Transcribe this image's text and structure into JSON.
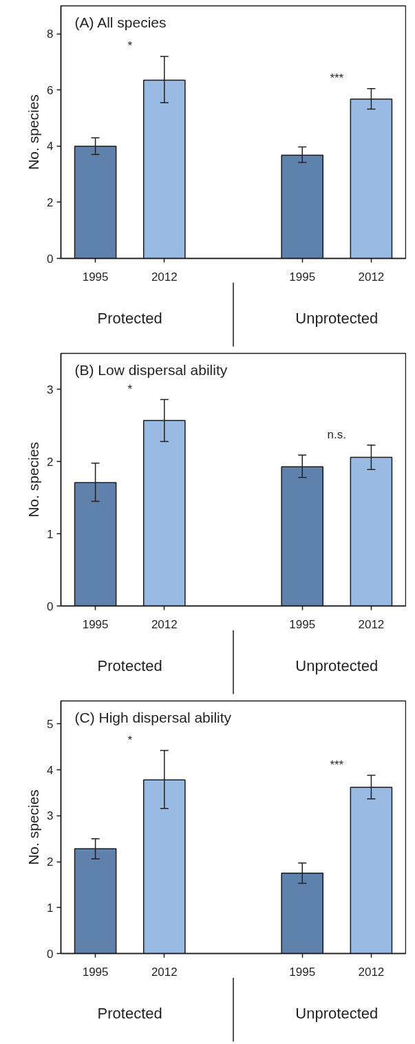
{
  "chart_data": [
    {
      "type": "bar",
      "title": "(A) All species",
      "ylabel": "No. species",
      "categories": [
        "1995",
        "2012",
        null,
        "1995",
        "2012"
      ],
      "values": [
        4.0,
        6.35,
        null,
        3.68,
        5.68
      ],
      "colors": [
        "#5f82ad",
        "#99bbe3",
        null,
        "#5f82ad",
        "#99bbe3"
      ],
      "errors": [
        [
          3.7,
          4.3
        ],
        [
          5.55,
          7.2
        ],
        null,
        [
          3.42,
          3.97
        ],
        [
          5.32,
          6.05
        ]
      ],
      "ylim": [
        0,
        9
      ],
      "yticks": [
        0,
        2,
        4,
        6,
        8
      ],
      "grid": false,
      "annotations": [
        "*",
        "***",
        "Protected",
        "Unprotected"
      ]
    },
    {
      "type": "bar",
      "title": "(B) Low dispersal ability",
      "ylabel": "No. species",
      "categories": [
        "1995",
        "2012",
        null,
        "1995",
        "2012"
      ],
      "values": [
        1.71,
        2.57,
        null,
        1.93,
        2.06
      ],
      "colors": [
        "#5f82ad",
        "#99bbe3",
        null,
        "#5f82ad",
        "#99bbe3"
      ],
      "errors": [
        [
          1.45,
          1.98
        ],
        [
          2.28,
          2.86
        ],
        null,
        [
          1.78,
          2.09
        ],
        [
          1.89,
          2.23
        ]
      ],
      "ylim": [
        0,
        3.5
      ],
      "yticks": [
        0,
        1,
        2,
        3
      ],
      "grid": false,
      "annotations": [
        "*",
        "n.s.",
        "Protected",
        "Unprotected"
      ]
    },
    {
      "type": "bar",
      "title": "(C) High dispersal ability",
      "ylabel": "No. species",
      "categories": [
        "1995",
        "2012",
        null,
        "1995",
        "2012"
      ],
      "values": [
        2.28,
        3.78,
        null,
        1.75,
        3.62
      ],
      "colors": [
        "#5f82ad",
        "#99bbe3",
        null,
        "#5f82ad",
        "#99bbe3"
      ],
      "errors": [
        [
          2.06,
          2.5
        ],
        [
          3.16,
          4.42
        ],
        null,
        [
          1.53,
          1.97
        ],
        [
          3.37,
          3.88
        ]
      ],
      "ylim": [
        0,
        5.5
      ],
      "yticks": [
        0,
        1,
        2,
        3,
        4,
        5
      ],
      "grid": false,
      "annotations": [
        "*",
        "***",
        "Protected",
        "Unprotected"
      ]
    }
  ]
}
